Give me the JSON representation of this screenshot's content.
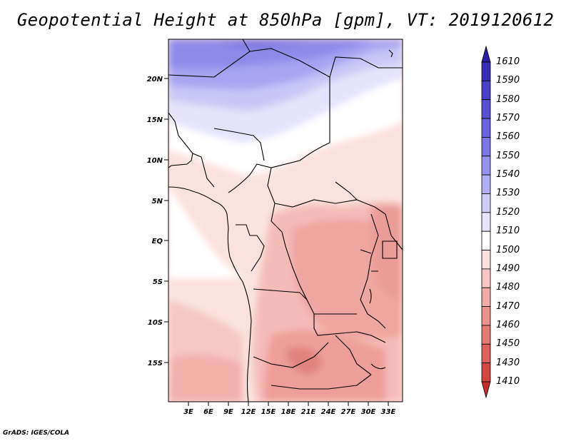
{
  "title": "Geopotential Height at 850hPa [gpm], VT: 2019120612",
  "footer": "GrADS: IGES/COLA",
  "map": {
    "projection": "latlon",
    "lat_range": [
      -20,
      24.5
    ],
    "lon_range": [
      0,
      35.5
    ],
    "lat_ticks": [
      "20N",
      "15N",
      "10N",
      "5N",
      "EQ",
      "5S",
      "10S",
      "15S"
    ],
    "lon_ticks": [
      "3E",
      "6E",
      "9E",
      "12E",
      "15E",
      "18E",
      "21E",
      "24E",
      "27E",
      "30E",
      "33E"
    ],
    "variable": "Geopotential Height",
    "level": "850hPa",
    "units": "gpm",
    "valid_time": "2019120612"
  },
  "colorbar": {
    "levels": [
      "1610",
      "1590",
      "1580",
      "1570",
      "1560",
      "1550",
      "1540",
      "1530",
      "1520",
      "1510",
      "1500",
      "1490",
      "1480",
      "1470",
      "1460",
      "1450",
      "1430",
      "1410"
    ],
    "colors": [
      "#2c1ea0",
      "#3a2fb4",
      "#4a3fc6",
      "#5a50d4",
      "#6a62de",
      "#7d76e6",
      "#9791ee",
      "#b2aef4",
      "#cfcdf8",
      "#e6e5fc",
      "#ffffff",
      "#fde0e0",
      "#f8c6c4",
      "#f2aca8",
      "#ec928c",
      "#e47a72",
      "#dc625a",
      "#d24840",
      "#c22e28"
    ],
    "orientation": "vertical",
    "extend": "both"
  }
}
